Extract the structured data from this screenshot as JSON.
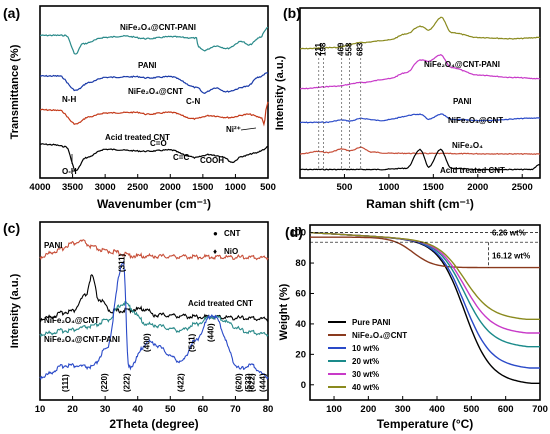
{
  "chart_data": [
    {
      "id": "a",
      "panel_label": "(a)",
      "type": "line",
      "xlabel": "Wavenumber (cm⁻¹)",
      "ylabel": "Transmittance (%)",
      "xlim": [
        4000,
        500
      ],
      "x_ticks": [
        4000,
        3500,
        3000,
        2500,
        2000,
        1500,
        1000,
        500
      ],
      "series": [
        {
          "name": "NiFe₂O₄@CNT-PANI",
          "color": "#2a8a8a",
          "points": [
            [
              4000,
              0.7
            ],
            [
              3800,
              0.72
            ],
            [
              3600,
              0.7
            ],
            [
              3450,
              -2.2
            ],
            [
              3350,
              -0.6
            ],
            [
              3000,
              0.4
            ],
            [
              2700,
              0.6
            ],
            [
              2360,
              0.2
            ],
            [
              2000,
              0.5
            ],
            [
              1600,
              0.3
            ],
            [
              1570,
              -1.1
            ],
            [
              1480,
              -1.6
            ],
            [
              1300,
              -0.9
            ],
            [
              1130,
              -1.3
            ],
            [
              900,
              -0.2
            ],
            [
              800,
              -0.8
            ],
            [
              600,
              0.5
            ],
            [
              560,
              1.3
            ],
            [
              500,
              2.0
            ]
          ]
        },
        {
          "name": "PANI",
          "color": "#1a3aa8",
          "points": [
            [
              4000,
              0.3
            ],
            [
              3700,
              0.3
            ],
            [
              3450,
              -1.9
            ],
            [
              3250,
              -0.7
            ],
            [
              3000,
              0.1
            ],
            [
              2500,
              0.2
            ],
            [
              2360,
              0.0
            ],
            [
              2000,
              0.2
            ],
            [
              1580,
              -1.5
            ],
            [
              1490,
              -2.3
            ],
            [
              1300,
              -1.5
            ],
            [
              1140,
              -2.1
            ],
            [
              820,
              -1.3
            ],
            [
              650,
              0.1
            ],
            [
              500,
              0.8
            ]
          ]
        },
        {
          "name": "NiFe₂O₄@CNT",
          "color": "#c43a1a",
          "points": [
            [
              4000,
              0.5
            ],
            [
              3700,
              0.4
            ],
            [
              3450,
              -1.7
            ],
            [
              3250,
              -0.6
            ],
            [
              3000,
              0.0
            ],
            [
              2500,
              0.1
            ],
            [
              2360,
              -0.2
            ],
            [
              2000,
              0.1
            ],
            [
              1630,
              -0.9
            ],
            [
              1400,
              -0.4
            ],
            [
              1100,
              -0.7
            ],
            [
              800,
              -0.2
            ],
            [
              600,
              -0.7
            ],
            [
              560,
              -1.7
            ],
            [
              520,
              1.0
            ],
            [
              500,
              1.8
            ]
          ]
        },
        {
          "name": "Acid treated CNT",
          "color": "#000000",
          "points": [
            [
              4000,
              0.6
            ],
            [
              3800,
              0.5
            ],
            [
              3600,
              0.2
            ],
            [
              3450,
              -3.5
            ],
            [
              3300,
              -1.5
            ],
            [
              3000,
              -0.2
            ],
            [
              2360,
              -0.5
            ],
            [
              2000,
              -0.3
            ],
            [
              1720,
              -1.2
            ],
            [
              1630,
              -1.5
            ],
            [
              1400,
              -1.0
            ],
            [
              1200,
              -1.3
            ],
            [
              1050,
              -2.2
            ],
            [
              900,
              -1.3
            ],
            [
              700,
              -0.8
            ],
            [
              550,
              -0.2
            ],
            [
              500,
              0.3
            ]
          ]
        }
      ],
      "annotations": [
        "N-H",
        "C-N",
        "C=O",
        "C=C",
        "COOH",
        "O-H",
        "Ni²⁺"
      ]
    },
    {
      "id": "b",
      "panel_label": "(b)",
      "type": "line",
      "xlabel": "Raman shift (cm⁻¹)",
      "ylabel": "Intensity (a.u.)",
      "xlim": [
        0,
        2700
      ],
      "x_ticks": [
        500,
        1000,
        1500,
        2000,
        2500
      ],
      "peak_labels": [
        "211",
        "198",
        "469",
        "558",
        "683"
      ],
      "series": [
        {
          "name": "NiFe₂O₄@CNT-PANI",
          "color": "#8a8a1e",
          "points": [
            [
              0,
              0.85
            ],
            [
              400,
              0.9
            ],
            [
              700,
              1.1
            ],
            [
              1000,
              1.2
            ],
            [
              1200,
              1.45
            ],
            [
              1350,
              1.75
            ],
            [
              1450,
              1.6
            ],
            [
              1590,
              2.1
            ],
            [
              1700,
              1.5
            ],
            [
              2000,
              1.3
            ],
            [
              2400,
              1.25
            ],
            [
              2700,
              1.3
            ]
          ]
        },
        {
          "name": "PANI",
          "color": "#c83ac8",
          "points": [
            [
              0,
              0.45
            ],
            [
              400,
              0.55
            ],
            [
              700,
              0.7
            ],
            [
              1000,
              0.85
            ],
            [
              1200,
              1.1
            ],
            [
              1350,
              1.6
            ],
            [
              1450,
              1.55
            ],
            [
              1580,
              1.8
            ],
            [
              1700,
              1.3
            ],
            [
              2000,
              1.0
            ],
            [
              2400,
              0.9
            ],
            [
              2700,
              0.85
            ]
          ]
        },
        {
          "name": "NiFe₂O₄@CNT",
          "color": "#2a4ac8",
          "points": [
            [
              0,
              0.22
            ],
            [
              300,
              0.23
            ],
            [
              470,
              0.32
            ],
            [
              560,
              0.28
            ],
            [
              690,
              0.38
            ],
            [
              900,
              0.3
            ],
            [
              1350,
              0.55
            ],
            [
              1450,
              0.35
            ],
            [
              1590,
              0.55
            ],
            [
              1700,
              0.35
            ],
            [
              2000,
              0.3
            ],
            [
              2700,
              0.4
            ]
          ]
        },
        {
          "name": "NiFe₂O₄",
          "color": "#c8503a",
          "points": [
            [
              0,
              -0.08
            ],
            [
              200,
              0.02
            ],
            [
              320,
              -0.02
            ],
            [
              470,
              0.12
            ],
            [
              560,
              0.05
            ],
            [
              690,
              0.18
            ],
            [
              800,
              0.0
            ],
            [
              1000,
              -0.05
            ],
            [
              1500,
              -0.06
            ],
            [
              2000,
              -0.07
            ],
            [
              2700,
              -0.08
            ]
          ]
        },
        {
          "name": "Acid treated CNT",
          "color": "#000000",
          "points": [
            [
              0,
              -0.3
            ],
            [
              900,
              -0.3
            ],
            [
              1200,
              -0.25
            ],
            [
              1350,
              0.5
            ],
            [
              1450,
              -0.2
            ],
            [
              1580,
              0.5
            ],
            [
              1700,
              -0.25
            ],
            [
              2000,
              -0.3
            ],
            [
              2600,
              -0.3
            ],
            [
              2700,
              -0.1
            ]
          ]
        }
      ]
    },
    {
      "id": "c",
      "panel_label": "(c)",
      "type": "line",
      "xlabel": "2Theta (degree)",
      "ylabel": "Intensity (a.u.)",
      "xlim": [
        10,
        80
      ],
      "x_ticks": [
        10,
        20,
        30,
        40,
        50,
        60,
        70,
        80
      ],
      "legend_entries": [
        "CNT",
        "NiO"
      ],
      "legend_position": "top-right",
      "hkl_labels": [
        "(111)",
        "(220)",
        "(311)",
        "(222)",
        "(400)",
        "(422)",
        "(511)",
        "(440)",
        "(620)",
        "(533)",
        "(622)",
        "(444)"
      ],
      "series": [
        {
          "name": "PANI",
          "color": "#c8503a",
          "points": [
            [
              10,
              3.7
            ],
            [
              15,
              3.85
            ],
            [
              20,
              4.05
            ],
            [
              23,
              4.1
            ],
            [
              26,
              3.95
            ],
            [
              30,
              3.85
            ],
            [
              40,
              3.72
            ],
            [
              60,
              3.7
            ],
            [
              80,
              3.68
            ]
          ]
        },
        {
          "name": "Acid treated CNT",
          "color": "#000000",
          "points": [
            [
              10,
              2.1
            ],
            [
              20,
              2.3
            ],
            [
              24,
              2.7
            ],
            [
              25.9,
              3.2
            ],
            [
              28,
              2.6
            ],
            [
              32,
              2.3
            ],
            [
              42.5,
              2.35
            ],
            [
              45,
              2.2
            ],
            [
              60,
              2.15
            ],
            [
              80,
              2.1
            ]
          ]
        },
        {
          "name": "NiFe₂O₄@CNT",
          "color": "#2a8a8a",
          "points": [
            [
              10,
              1.7
            ],
            [
              18.3,
              1.8
            ],
            [
              26,
              1.9
            ],
            [
              30.3,
              2.05
            ],
            [
              35.6,
              2.5
            ],
            [
              43.3,
              1.95
            ],
            [
              53.7,
              1.8
            ],
            [
              57.2,
              1.95
            ],
            [
              62.9,
              2.15
            ],
            [
              74.5,
              1.75
            ],
            [
              80,
              1.7
            ]
          ]
        },
        {
          "name": "NiFe₂O₄@CNT-PANI",
          "color": "#2a4ac8",
          "points": [
            [
              10,
              0.6
            ],
            [
              18.3,
              0.9
            ],
            [
              26,
              0.85
            ],
            [
              30.3,
              1.3
            ],
            [
              35.6,
              3.6
            ],
            [
              37.2,
              0.85
            ],
            [
              43.3,
              1.5
            ],
            [
              53.7,
              1.0
            ],
            [
              57.2,
              1.5
            ],
            [
              62.9,
              2.2
            ],
            [
              71.5,
              0.8
            ],
            [
              74.5,
              0.9
            ],
            [
              80,
              0.6
            ]
          ]
        }
      ]
    },
    {
      "id": "d",
      "panel_label": "(d)",
      "type": "line",
      "xlabel": "Temperature (°C)",
      "ylabel": "Weight (%)",
      "xlim": [
        30,
        700
      ],
      "ylim": [
        -10,
        105
      ],
      "x_ticks": [
        100,
        200,
        300,
        400,
        500,
        600,
        700
      ],
      "y_ticks": [
        0,
        20,
        40,
        60,
        80,
        100
      ],
      "annotations": [
        "6.26 wt%",
        "16.12 wt%"
      ],
      "legend_position": "bottom-left",
      "series": [
        {
          "name": "Pure PANI",
          "color": "#000000",
          "final_weight": 1
        },
        {
          "name": "NiFe₂O₄@CNT",
          "color": "#8a3a1e",
          "final_weight": 77
        },
        {
          "name": "10 wt%",
          "color": "#2a4ac8",
          "final_weight": 11
        },
        {
          "name": "20 wt%",
          "color": "#1a8a8a",
          "final_weight": 25
        },
        {
          "name": "30 wt%",
          "color": "#c83ac8",
          "final_weight": 34
        },
        {
          "name": "40 wt%",
          "color": "#8a8a1e",
          "final_weight": 43
        }
      ]
    }
  ]
}
